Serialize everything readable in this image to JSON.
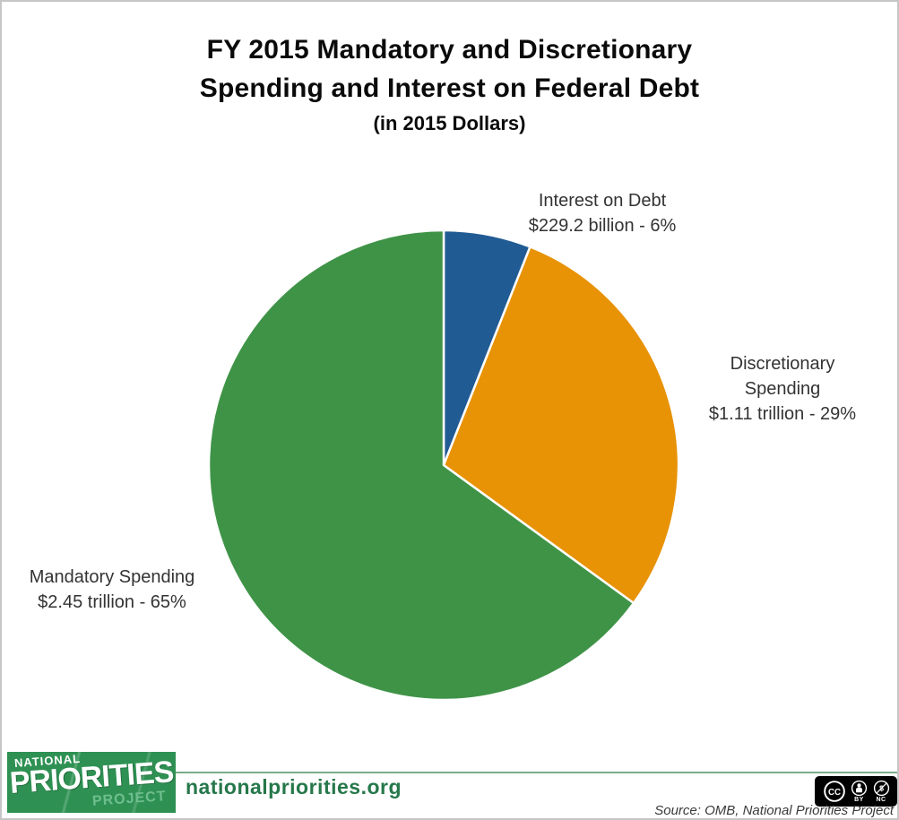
{
  "title": {
    "line1": "FY 2015 Mandatory and Discretionary",
    "line2": "Spending and Interest on Federal Debt",
    "subtitle": "(in 2015 Dollars)"
  },
  "chart_data": {
    "type": "pie",
    "title": "FY 2015 Mandatory and Discretionary Spending and Interest on Federal Debt (in 2015 Dollars)",
    "start_angle_deg": 0,
    "direction": "clockwise",
    "legend_position": "none",
    "slices": [
      {
        "id": "interest-on-debt",
        "label": "Interest on Debt",
        "amount": "$229.2 billion",
        "percent": 6,
        "color": "#215B94"
      },
      {
        "id": "discretionary-spending",
        "label": "Discretionary Spending",
        "amount": "$1.11 trillion",
        "percent": 29,
        "color": "#E89206"
      },
      {
        "id": "mandatory-spending",
        "label": "Mandatory Spending",
        "amount": "$2.45 trillion",
        "percent": 65,
        "color": "#3F9347"
      }
    ]
  },
  "pie_labels": {
    "interest": [
      "Interest on Debt",
      "$229.2 billion - 6%"
    ],
    "discretionary": [
      "Discretionary",
      "Spending",
      "$1.11 trillion - 29%"
    ],
    "mandatory": [
      "Mandatory Spending",
      "$2.45 trillion - 65%"
    ]
  },
  "footer": {
    "logo": {
      "line1": "NATIONAL",
      "line2": "PRIORITIES",
      "line3": "PROJECT"
    },
    "website": "nationalpriorities.org",
    "source": "Source: OMB, National Priorities Project",
    "license": {
      "cc_label": "CC",
      "nc_glyph": "$",
      "terms": [
        "BY",
        "NC"
      ]
    }
  },
  "colors": {
    "pie_green": "#3F9347",
    "pie_blue": "#215B94",
    "pie_orange": "#E89206",
    "logo_green": "#2E9153",
    "logo_project_green": "#6FBE8E",
    "website_green": "#26784A",
    "rule_green": "#7aab8a",
    "frame_border": "#c6c6c6"
  }
}
